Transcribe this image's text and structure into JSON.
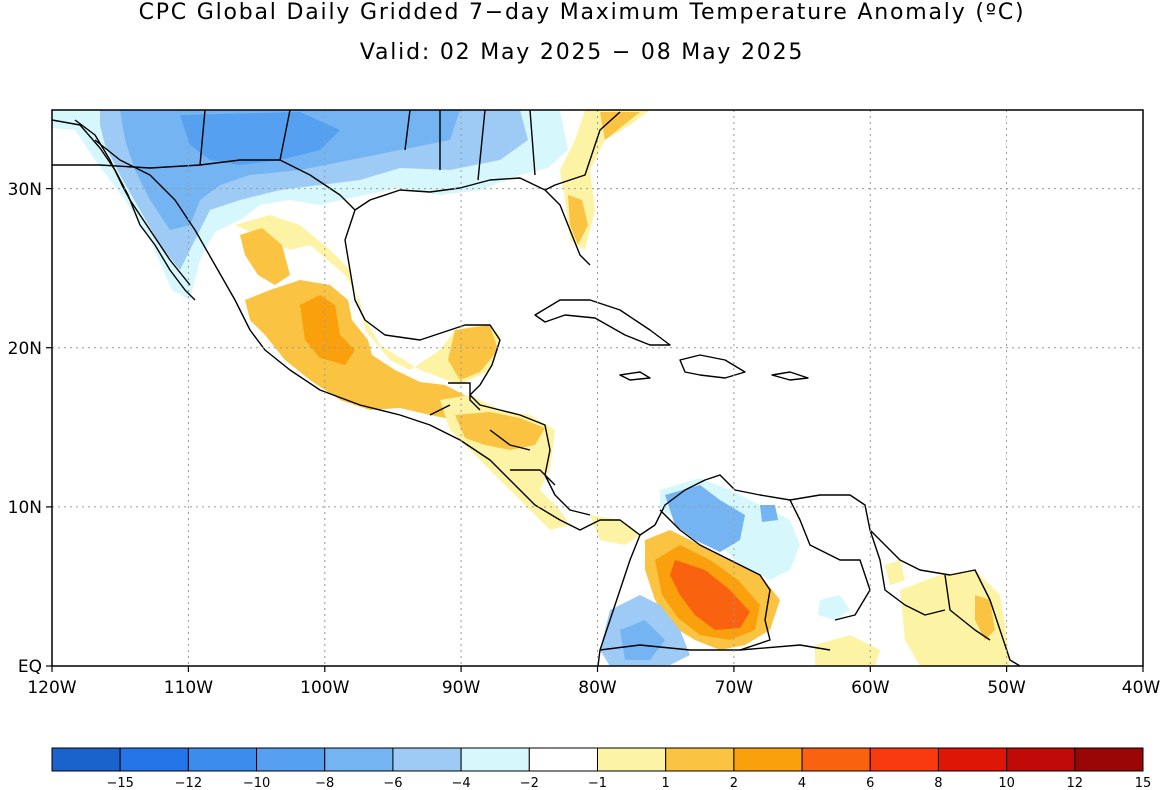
{
  "title": {
    "line1": "CPC Global Daily Gridded 7−day Maximum Temperature Anomaly (ºC)",
    "line2": "Valid: 02 May 2025 − 08 May 2025"
  },
  "map": {
    "x_axis_labels": [
      "120W",
      "110W",
      "100W",
      "90W",
      "80W",
      "70W",
      "60W",
      "50W",
      "40W"
    ],
    "y_axis_labels": [
      "EQ",
      "10N",
      "20N",
      "30N"
    ],
    "x_range_deg": [
      -120,
      -40
    ],
    "y_range_deg": [
      0,
      35
    ],
    "grid": "dotted"
  },
  "colorbar": {
    "colors": [
      "#1a63cc",
      "#2476e8",
      "#3c8cee",
      "#55a0f0",
      "#75b4f2",
      "#9dcbf5",
      "#d6f8fd",
      "#ffffff",
      "#fdf3a4",
      "#fbc342",
      "#f9a00c",
      "#f9620e",
      "#f93a10",
      "#de1606",
      "#c00a08",
      "#9a0606"
    ],
    "labels": [
      "-15",
      "-12",
      "-10",
      "-8",
      "-6",
      "-4",
      "-2",
      "-1",
      "1",
      "2",
      "4",
      "6",
      "8",
      "10",
      "12",
      "15"
    ]
  }
}
